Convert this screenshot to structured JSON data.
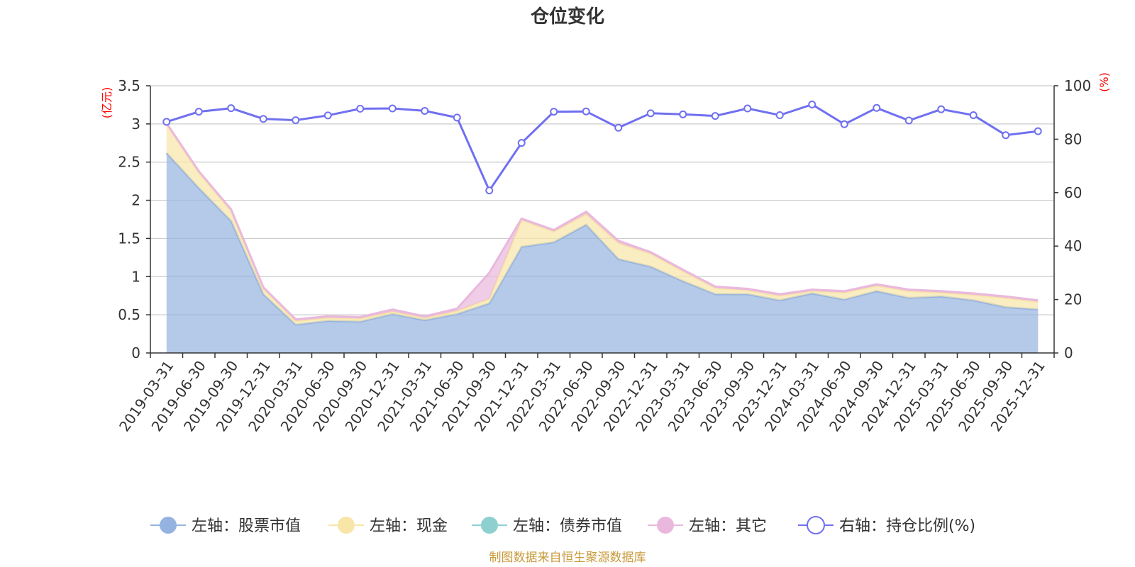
{
  "chart_data": {
    "type": "area",
    "title": "仓位变化",
    "left_unit": "(亿元)",
    "right_unit": "(%)",
    "source": "制图数据来自恒生聚源数据库",
    "left_ylim": [
      0,
      3.5
    ],
    "left_ticks": [
      0,
      0.5,
      1,
      1.5,
      2,
      2.5,
      3,
      3.5
    ],
    "left_tick_labels": [
      "0",
      "0.5",
      "1",
      "1.5",
      "2",
      "2.5",
      "3",
      "3.5"
    ],
    "right_ylim": [
      0,
      100
    ],
    "right_ticks": [
      0,
      20,
      40,
      60,
      80,
      100
    ],
    "right_tick_labels": [
      "0",
      "20",
      "40",
      "60",
      "80",
      "100"
    ],
    "categories": [
      "2019-03-31",
      "2019-06-30",
      "2019-09-30",
      "2019-12-31",
      "2020-03-31",
      "2020-06-30",
      "2020-09-30",
      "2020-12-31",
      "2021-03-31",
      "2021-06-30",
      "2021-09-30",
      "2021-12-31",
      "2022-03-31",
      "2022-06-30",
      "2022-09-30",
      "2022-12-31",
      "2023-03-31",
      "2023-06-30",
      "2023-09-30",
      "2023-12-31",
      "2024-03-31",
      "2024-06-30",
      "2024-09-30",
      "2024-12-31",
      "2025-03-31",
      "2025-06-30",
      "2025-09-30",
      "2025-12-31"
    ],
    "series": [
      {
        "name": "左轴：股票市值",
        "axis": "left",
        "kind": "area",
        "color": "#95b3e0",
        "values": [
          2.62,
          2.16,
          1.73,
          0.77,
          0.37,
          0.42,
          0.41,
          0.51,
          0.43,
          0.51,
          0.65,
          1.39,
          1.45,
          1.68,
          1.23,
          1.13,
          0.94,
          0.77,
          0.77,
          0.69,
          0.78,
          0.7,
          0.81,
          0.72,
          0.74,
          0.69,
          0.6,
          0.57
        ]
      },
      {
        "name": "左轴：现金",
        "axis": "left",
        "kind": "area",
        "color": "#f8e6a8",
        "values": [
          0.38,
          0.2,
          0.13,
          0.07,
          0.05,
          0.04,
          0.04,
          0.03,
          0.03,
          0.04,
          0.06,
          0.35,
          0.14,
          0.14,
          0.21,
          0.17,
          0.13,
          0.08,
          0.05,
          0.06,
          0.03,
          0.09,
          0.07,
          0.09,
          0.05,
          0.07,
          0.12,
          0.1
        ]
      },
      {
        "name": "左轴：债券市值",
        "axis": "left",
        "kind": "area",
        "color": "#8ed0d0",
        "values": [
          0,
          0,
          0,
          0,
          0,
          0,
          0,
          0,
          0,
          0,
          0,
          0,
          0,
          0,
          0,
          0,
          0,
          0,
          0,
          0,
          0,
          0,
          0,
          0,
          0,
          0,
          0,
          0
        ]
      },
      {
        "name": "左轴：其它",
        "axis": "left",
        "kind": "area",
        "color": "#eab8dc",
        "values": [
          0.01,
          0.02,
          0.02,
          0.02,
          0.02,
          0.02,
          0.02,
          0.03,
          0.02,
          0.03,
          0.34,
          0.02,
          0.02,
          0.03,
          0.03,
          0.02,
          0.02,
          0.02,
          0.02,
          0.02,
          0.02,
          0.02,
          0.02,
          0.02,
          0.02,
          0.02,
          0.02,
          0.02
        ]
      },
      {
        "name": "右轴：持仓比例(%)",
        "axis": "right",
        "kind": "line",
        "color": "#7070f0",
        "values": [
          86.5,
          90.3,
          91.6,
          87.6,
          87.1,
          88.9,
          91.4,
          91.5,
          90.6,
          88.1,
          60.8,
          78.6,
          90.3,
          90.4,
          84.3,
          89.7,
          89.3,
          88.7,
          91.5,
          89.0,
          93.0,
          85.6,
          91.7,
          87.0,
          91.2,
          89.0,
          81.5,
          83.0
        ]
      }
    ]
  }
}
